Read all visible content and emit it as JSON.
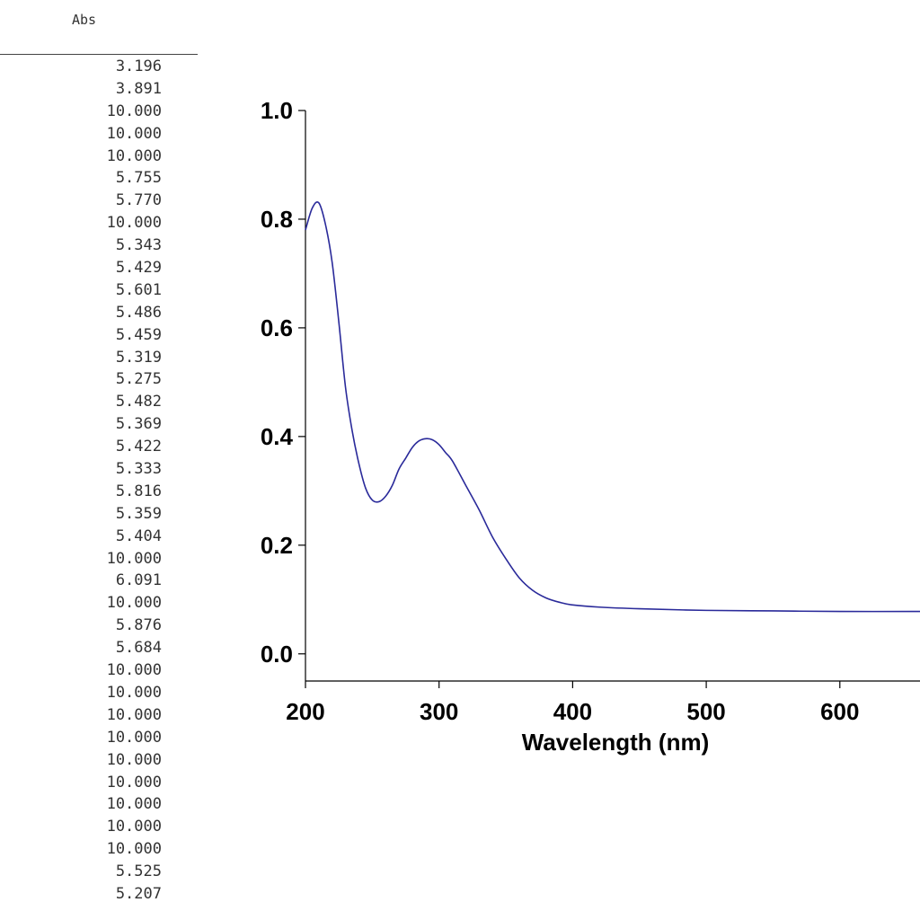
{
  "abs_table": {
    "header": "Abs",
    "values": [
      "3.196",
      "3.891",
      "10.000",
      "10.000",
      "10.000",
      "5.755",
      "5.770",
      "10.000",
      "5.343",
      "5.429",
      "5.601",
      "5.486",
      "5.459",
      "5.319",
      "5.275",
      "5.482",
      "5.369",
      "5.422",
      "5.333",
      "5.816",
      "5.359",
      "5.404",
      "10.000",
      "6.091",
      "10.000",
      "5.876",
      "5.684",
      "10.000",
      "10.000",
      "10.000",
      "10.000",
      "10.000",
      "10.000",
      "10.000",
      "10.000",
      "10.000",
      "5.525",
      "5.207"
    ]
  },
  "chart_data": {
    "type": "line",
    "title": "",
    "xlabel": "Wavelength (nm)",
    "ylabel": "",
    "xlim": [
      200,
      660
    ],
    "ylim": [
      -0.05,
      1.0
    ],
    "xticks": [
      "200",
      "300",
      "400",
      "500",
      "600"
    ],
    "yticks": [
      "0.0",
      "0.2",
      "0.4",
      "0.6",
      "0.8",
      "1.0"
    ],
    "grid": false,
    "series": [
      {
        "color": "#2a2a9a",
        "x": [
          200,
          205,
          210,
          215,
          220,
          225,
          230,
          235,
          240,
          245,
          250,
          255,
          260,
          265,
          270,
          275,
          280,
          285,
          290,
          295,
          300,
          305,
          310,
          320,
          330,
          340,
          350,
          360,
          370,
          380,
          390,
          400,
          420,
          450,
          500,
          550,
          600,
          660
        ],
        "y": [
          0.78,
          0.82,
          0.83,
          0.79,
          0.72,
          0.61,
          0.49,
          0.41,
          0.35,
          0.305,
          0.283,
          0.28,
          0.29,
          0.31,
          0.34,
          0.36,
          0.38,
          0.392,
          0.396,
          0.394,
          0.385,
          0.37,
          0.355,
          0.31,
          0.265,
          0.215,
          0.175,
          0.14,
          0.117,
          0.103,
          0.095,
          0.09,
          0.086,
          0.083,
          0.08,
          0.079,
          0.078,
          0.078
        ]
      }
    ]
  }
}
